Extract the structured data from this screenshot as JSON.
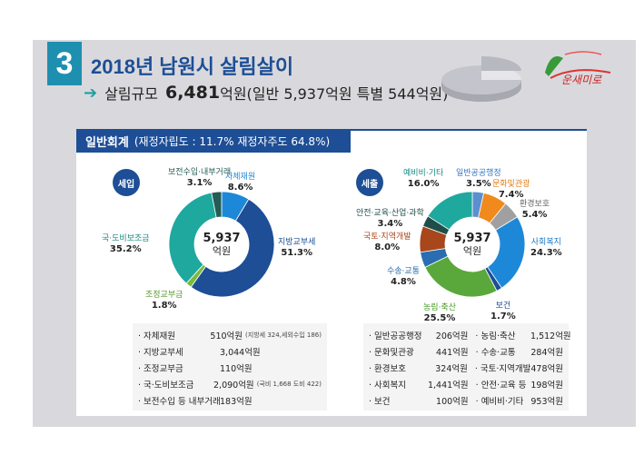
{
  "header": {
    "number": "3",
    "title": "2018년 남원시 살림살이",
    "arrow": "➔",
    "scale_label": "살림규모",
    "scale_value": "6,481",
    "scale_unit": "억원",
    "scale_detail": "(일반 5,937억원   특별 544억원)",
    "brand": "운새미로"
  },
  "section": {
    "label": "일반회계",
    "detail": "(재정자립도 : 11.7%   재정자주도 64.8%)"
  },
  "revenue": {
    "badge": "세입",
    "center_value": "5,937",
    "center_unit": "억원",
    "slices": [
      {
        "name": "자체재원",
        "pct": "8.6%",
        "value": 8.6,
        "color": "#1e88d8"
      },
      {
        "name": "지방교부세",
        "pct": "51.3%",
        "value": 51.3,
        "color": "#1d4e96"
      },
      {
        "name": "조정교부금",
        "pct": "1.8%",
        "value": 1.8,
        "color": "#7cba3e"
      },
      {
        "name": "국·도비보조금",
        "pct": "35.2%",
        "value": 35.2,
        "color": "#1fa89e"
      },
      {
        "name": "보전수입·내부거래",
        "pct": "3.1%",
        "value": 3.1,
        "color": "#235c55"
      }
    ],
    "table": [
      {
        "label": "· 자체재원",
        "amount": "510억원",
        "note": "(지방세 324,세외수입 186)"
      },
      {
        "label": "· 지방교부세",
        "amount": "3,044억원",
        "note": ""
      },
      {
        "label": "· 조정교부금",
        "amount": "110억원",
        "note": ""
      },
      {
        "label": "· 국·도비보조금",
        "amount": "2,090억원",
        "note": "(국비 1,668  도비 422)"
      },
      {
        "label": "· 보전수입 등 내부거래",
        "amount": "183억원",
        "note": ""
      }
    ]
  },
  "expenditure": {
    "badge": "세출",
    "center_value": "5,937",
    "center_unit": "억원",
    "slices": [
      {
        "name": "일반공공행정",
        "pct": "3.5%",
        "value": 3.5,
        "color": "#5a8fd0"
      },
      {
        "name": "문화및관광",
        "pct": "7.4%",
        "value": 7.4,
        "color": "#f08a1c"
      },
      {
        "name": "환경보호",
        "pct": "5.4%",
        "value": 5.4,
        "color": "#a0a0a0"
      },
      {
        "name": "사회복지",
        "pct": "24.3%",
        "value": 24.3,
        "color": "#1e88d8"
      },
      {
        "name": "보건",
        "pct": "1.7%",
        "value": 1.7,
        "color": "#1d4e96"
      },
      {
        "name": "농림·축산",
        "pct": "25.5%",
        "value": 25.5,
        "color": "#5aa83c"
      },
      {
        "name": "수송·교통",
        "pct": "4.8%",
        "value": 4.8,
        "color": "#2a6db0"
      },
      {
        "name": "국토·지역개발",
        "pct": "8.0%",
        "value": 8.0,
        "color": "#a8461c"
      },
      {
        "name": "안전·교육·산업·과학",
        "pct": "3.4%",
        "value": 3.4,
        "color": "#1f4e4a"
      },
      {
        "name": "예비비·기타",
        "pct": "16.0%",
        "value": 16.0,
        "color": "#1fa89e"
      }
    ],
    "table": [
      {
        "l1": "· 일반공공행정",
        "a1": "206억원",
        "l2": "· 농림·축산",
        "a2": "1,512억원"
      },
      {
        "l1": "· 문화및관광",
        "a1": "441억원",
        "l2": "· 수송·교통",
        "a2": "284억원"
      },
      {
        "l1": "· 환경보호",
        "a1": "324억원",
        "l2": "· 국토·지역개발",
        "a2": "478억원"
      },
      {
        "l1": "· 사회복지",
        "a1": "1,441억원",
        "l2": "· 안전·교육 등",
        "a2": "198억원"
      },
      {
        "l1": "· 보건",
        "a1": "100억원",
        "l2": "· 예비비·기타",
        "a2": "953억원"
      }
    ]
  }
}
